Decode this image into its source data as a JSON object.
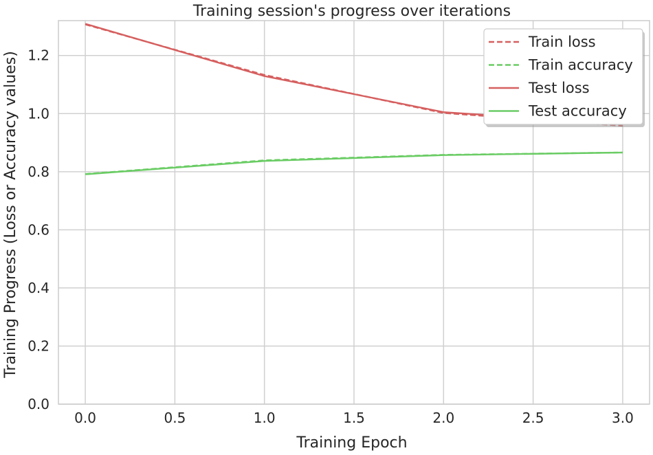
{
  "chart_data": {
    "type": "line",
    "title": "Training session's progress over iterations",
    "xlabel": "Training Epoch",
    "ylabel": "Training Progress (Loss or Accuracy values)",
    "xlim": [
      -0.15,
      3.15
    ],
    "ylim": [
      0.0,
      1.32
    ],
    "xticks": [
      "0.0",
      "0.5",
      "1.0",
      "1.5",
      "2.0",
      "2.5",
      "3.0"
    ],
    "yticks": [
      "0.0",
      "0.2",
      "0.4",
      "0.6",
      "0.8",
      "1.0",
      "1.2"
    ],
    "grid": true,
    "legend_position": "top-right",
    "x": [
      0,
      1,
      2,
      3
    ],
    "series": [
      {
        "name": "Train loss",
        "values": [
          1.307,
          1.133,
          1.002,
          0.958
        ],
        "color": "#d65f5f",
        "style": "dashed"
      },
      {
        "name": "Train accuracy",
        "values": [
          0.792,
          0.839,
          0.858,
          0.866
        ],
        "color": "#6acc64",
        "style": "dashed"
      },
      {
        "name": "Test loss",
        "values": [
          1.309,
          1.129,
          1.005,
          0.964
        ],
        "color": "#d65f5f",
        "style": "solid"
      },
      {
        "name": "Test accuracy",
        "values": [
          0.791,
          0.837,
          0.857,
          0.866
        ],
        "color": "#6acc64",
        "style": "solid"
      }
    ]
  }
}
